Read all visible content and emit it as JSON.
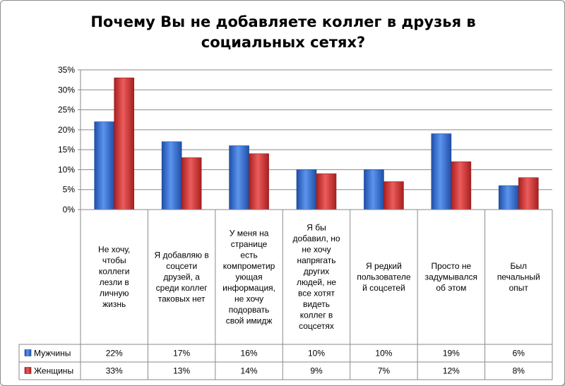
{
  "chart_data": {
    "type": "bar",
    "title": "Почему Вы не добавляете коллег в друзья в социальных сетях?",
    "title_lines": [
      "Почему Вы не добавляете коллег в друзья в",
      "социальных сетях?"
    ],
    "categories": [
      "Не хочу, чтобы коллеги лезли в личную жизнь",
      "Я добавляю в соцсети друзей, а среди коллег таковых нет",
      "У меня на странице есть компрометирующая информация, не хочу подорвать свой имидж",
      "Я бы добавил, но не хочу напрягать других людей, не все хотят видеть коллег в соцсетях",
      "Я редкий пользователей соцсетей",
      "Просто не задумывался об этом",
      "Был печальный опыт"
    ],
    "category_lines": [
      [
        "Не хочу,",
        "чтобы",
        "коллеги",
        "лезли в",
        "личную",
        "жизнь"
      ],
      [
        "Я добавляю в",
        "соцсети",
        "друзей, а",
        "среди коллег",
        "таковых нет"
      ],
      [
        "У меня на",
        "странице",
        "есть",
        "компрометир",
        "ующая",
        "информация,",
        "не хочу",
        "подорвать",
        "свой имидж"
      ],
      [
        "Я бы",
        "добавил, но",
        "не хочу",
        "напрягать",
        "других",
        "людей, не",
        "все хотят",
        "видеть",
        "коллег в",
        "соцсетях"
      ],
      [
        "Я редкий",
        "пользователе",
        "й соцсетей"
      ],
      [
        "Просто не",
        "задумывался",
        "об этом"
      ],
      [
        "Был",
        "печальный",
        "опыт"
      ]
    ],
    "series": [
      {
        "name": "Мужчины",
        "color": "#2f6fd6",
        "values": [
          22,
          17,
          16,
          10,
          10,
          19,
          6
        ],
        "labels": [
          "22%",
          "17%",
          "16%",
          "10%",
          "10%",
          "19%",
          "6%"
        ]
      },
      {
        "name": "Женщины",
        "color": "#d63535",
        "values": [
          33,
          13,
          14,
          9,
          7,
          12,
          8
        ],
        "labels": [
          "33%",
          "13%",
          "14%",
          "9%",
          "7%",
          "12%",
          "8%"
        ]
      }
    ],
    "ylim": [
      0,
      35
    ],
    "yticks": [
      "0%",
      "5%",
      "10%",
      "15%",
      "20%",
      "25%",
      "30%",
      "35%"
    ],
    "ytick_values": [
      0,
      5,
      10,
      15,
      20,
      25,
      30,
      35
    ],
    "grid": true,
    "legend": "data-table"
  }
}
